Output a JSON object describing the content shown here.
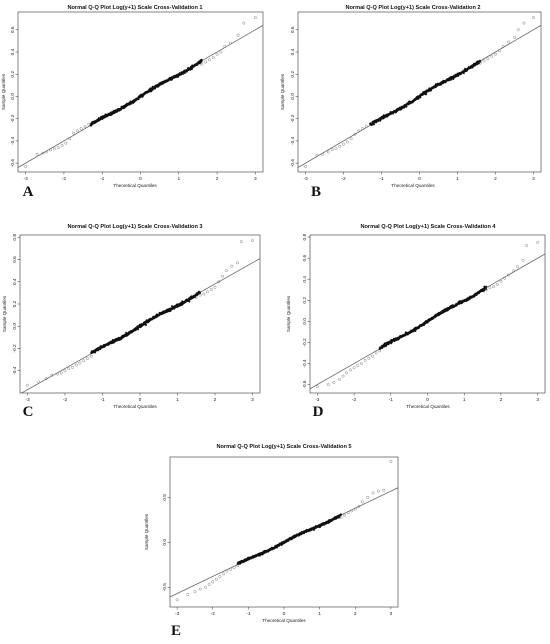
{
  "chart_data": [
    {
      "type": "scatter",
      "panel_label": "A",
      "title": "Normal Q-Q Plot Log(y+1) Scale Cross-Validation 1",
      "xlabel": "Theoretical Quantiles",
      "ylabel": "Sample Quantiles",
      "xlim": [
        -3.2,
        3.2
      ],
      "ylim": [
        -0.68,
        0.76
      ],
      "xticks": [
        -3,
        -2,
        -1,
        0,
        1,
        2,
        3
      ],
      "yticks": [
        -0.6,
        -0.4,
        -0.2,
        0.0,
        0.2,
        0.4,
        0.6
      ],
      "ytick_labels": [
        "-0.6",
        "-0.4",
        "-0.2",
        "0.0",
        "0.2",
        "0.4",
        "0.6"
      ],
      "reference_line": {
        "intercept": 0.0,
        "slope": 0.2
      },
      "series": [
        {
          "values": [
            [
              -3.0,
              -0.63
            ],
            [
              -2.7,
              -0.52
            ],
            [
              -2.55,
              -0.51
            ],
            [
              -2.45,
              -0.5
            ],
            [
              -2.35,
              -0.48
            ],
            [
              -2.25,
              -0.47
            ],
            [
              -2.15,
              -0.46
            ],
            [
              -2.05,
              -0.44
            ],
            [
              -1.95,
              -0.42
            ],
            [
              -1.85,
              -0.38
            ],
            [
              -1.75,
              -0.33
            ],
            [
              -1.65,
              -0.31
            ],
            [
              -1.55,
              -0.29
            ],
            [
              -1.45,
              -0.27
            ],
            [
              -1.35,
              -0.25
            ],
            [
              1.6,
              0.29
            ],
            [
              1.7,
              0.31
            ],
            [
              1.8,
              0.33
            ],
            [
              1.9,
              0.35
            ],
            [
              2.0,
              0.38
            ],
            [
              2.1,
              0.4
            ],
            [
              2.2,
              0.45
            ],
            [
              2.35,
              0.48
            ],
            [
              2.55,
              0.55
            ],
            [
              2.7,
              0.66
            ],
            [
              3.0,
              0.71
            ]
          ]
        }
      ]
    },
    {
      "type": "scatter",
      "panel_label": "B",
      "title": "Normal Q-Q Plot Log(y+1) Scale Cross-Validation 2",
      "xlabel": "Theoretical Quantiles",
      "ylabel": "Sample Quantiles",
      "xlim": [
        -3.2,
        3.2
      ],
      "ylim": [
        -0.68,
        0.76
      ],
      "xticks": [
        -3,
        -2,
        -1,
        0,
        1,
        2,
        3
      ],
      "yticks": [
        -0.6,
        -0.4,
        -0.2,
        0.0,
        0.2,
        0.4,
        0.6
      ],
      "ytick_labels": [
        "-0.6",
        "-0.4",
        "-0.2",
        "0.0",
        "0.2",
        "0.4",
        "0.6"
      ],
      "reference_line": {
        "intercept": 0.0,
        "slope": 0.2
      },
      "series": [
        {
          "values": [
            [
              -3.0,
              -0.63
            ],
            [
              -2.7,
              -0.53
            ],
            [
              -2.55,
              -0.52
            ],
            [
              -2.4,
              -0.5
            ],
            [
              -2.3,
              -0.48
            ],
            [
              -2.2,
              -0.47
            ],
            [
              -2.1,
              -0.45
            ],
            [
              -2.0,
              -0.43
            ],
            [
              -1.9,
              -0.41
            ],
            [
              -1.8,
              -0.38
            ],
            [
              -1.7,
              -0.34
            ],
            [
              -1.6,
              -0.31
            ],
            [
              -1.5,
              -0.29
            ],
            [
              -1.4,
              -0.27
            ],
            [
              1.6,
              0.3
            ],
            [
              1.7,
              0.32
            ],
            [
              1.8,
              0.34
            ],
            [
              1.9,
              0.36
            ],
            [
              2.0,
              0.38
            ],
            [
              2.1,
              0.41
            ],
            [
              2.2,
              0.45
            ],
            [
              2.35,
              0.49
            ],
            [
              2.5,
              0.53
            ],
            [
              2.6,
              0.6
            ],
            [
              2.75,
              0.66
            ],
            [
              3.0,
              0.71
            ]
          ]
        }
      ]
    },
    {
      "type": "scatter",
      "panel_label": "C",
      "title": "Normal Q-Q Plot Log(y+1) Scale Cross-Validation 3",
      "xlabel": "Theoretical Quantiles",
      "ylabel": "Sample Quantiles",
      "xlim": [
        -3.2,
        3.2
      ],
      "ylim": [
        -0.6,
        0.82
      ],
      "xticks": [
        -3,
        -2,
        -1,
        0,
        1,
        2,
        3
      ],
      "yticks": [
        -0.4,
        -0.2,
        0.0,
        0.2,
        0.4,
        0.6,
        0.8
      ],
      "ytick_labels": [
        "-0.4",
        "-0.2",
        "0.0",
        "0.2",
        "0.4",
        "0.6",
        "0.8"
      ],
      "reference_line": {
        "intercept": 0.0,
        "slope": 0.19
      },
      "series": [
        {
          "values": [
            [
              -3.0,
              -0.53
            ],
            [
              -2.7,
              -0.5
            ],
            [
              -2.5,
              -0.47
            ],
            [
              -2.35,
              -0.44
            ],
            [
              -2.2,
              -0.43
            ],
            [
              -2.1,
              -0.42
            ],
            [
              -2.0,
              -0.4
            ],
            [
              -1.9,
              -0.38
            ],
            [
              -1.8,
              -0.37
            ],
            [
              -1.7,
              -0.35
            ],
            [
              -1.6,
              -0.33
            ],
            [
              -1.5,
              -0.31
            ],
            [
              -1.4,
              -0.29
            ],
            [
              -1.3,
              -0.27
            ],
            [
              1.5,
              0.26
            ],
            [
              1.6,
              0.28
            ],
            [
              1.7,
              0.29
            ],
            [
              1.8,
              0.31
            ],
            [
              1.9,
              0.33
            ],
            [
              2.0,
              0.35
            ],
            [
              2.1,
              0.4
            ],
            [
              2.2,
              0.45
            ],
            [
              2.3,
              0.5
            ],
            [
              2.45,
              0.54
            ],
            [
              2.6,
              0.57
            ],
            [
              2.7,
              0.76
            ],
            [
              3.0,
              0.77
            ]
          ]
        }
      ]
    },
    {
      "type": "scatter",
      "panel_label": "D",
      "title": "Normal Q-Q Plot Log(y+1) Scale Cross-Validation 4",
      "xlabel": "Theoretical Quantiles",
      "ylabel": "Sample Quantiles",
      "xlim": [
        -3.2,
        3.2
      ],
      "ylim": [
        -0.68,
        0.82
      ],
      "xticks": [
        -3,
        -2,
        -1,
        0,
        1,
        2,
        3
      ],
      "yticks": [
        -0.6,
        -0.4,
        -0.2,
        0.0,
        0.2,
        0.4,
        0.6,
        0.8
      ],
      "ytick_labels": [
        "-0.6",
        "-0.4",
        "-0.2",
        "0.0",
        "0.2",
        "0.4",
        "0.6",
        "0.8"
      ],
      "reference_line": {
        "intercept": 0.0,
        "slope": 0.2
      },
      "series": [
        {
          "values": [
            [
              -3.0,
              -0.62
            ],
            [
              -2.7,
              -0.6
            ],
            [
              -2.55,
              -0.58
            ],
            [
              -2.4,
              -0.55
            ],
            [
              -2.3,
              -0.52
            ],
            [
              -2.2,
              -0.49
            ],
            [
              -2.1,
              -0.46
            ],
            [
              -2.0,
              -0.44
            ],
            [
              -1.9,
              -0.42
            ],
            [
              -1.8,
              -0.4
            ],
            [
              -1.7,
              -0.37
            ],
            [
              -1.6,
              -0.35
            ],
            [
              -1.5,
              -0.33
            ],
            [
              -1.4,
              -0.3
            ],
            [
              -1.3,
              -0.28
            ],
            [
              1.6,
              0.3
            ],
            [
              1.7,
              0.32
            ],
            [
              1.8,
              0.33
            ],
            [
              1.9,
              0.35
            ],
            [
              2.0,
              0.38
            ],
            [
              2.1,
              0.41
            ],
            [
              2.2,
              0.44
            ],
            [
              2.35,
              0.48
            ],
            [
              2.45,
              0.52
            ],
            [
              2.6,
              0.58
            ],
            [
              2.7,
              0.72
            ],
            [
              3.0,
              0.75
            ]
          ]
        }
      ]
    },
    {
      "type": "scatter",
      "panel_label": "E",
      "title": "Normal Q-Q Plot Log(y+1) Scale Cross-Validation 5",
      "xlabel": "Theoretical Quantiles",
      "ylabel": "Sample Quantiles",
      "xlim": [
        -3.2,
        3.2
      ],
      "ylim": [
        -0.72,
        0.95
      ],
      "xticks": [
        -3,
        -2,
        -1,
        0,
        1,
        2,
        3
      ],
      "yticks": [
        -0.5,
        0.0,
        0.5
      ],
      "ytick_labels": [
        "-0.5",
        "0.0",
        "0.5"
      ],
      "reference_line": {
        "intercept": 0.0,
        "slope": 0.19
      },
      "series": [
        {
          "values": [
            [
              -3.0,
              -0.64
            ],
            [
              -2.7,
              -0.58
            ],
            [
              -2.5,
              -0.55
            ],
            [
              -2.35,
              -0.52
            ],
            [
              -2.2,
              -0.5
            ],
            [
              -2.1,
              -0.47
            ],
            [
              -2.0,
              -0.44
            ],
            [
              -1.9,
              -0.41
            ],
            [
              -1.8,
              -0.38
            ],
            [
              -1.7,
              -0.35
            ],
            [
              -1.6,
              -0.32
            ],
            [
              -1.5,
              -0.3
            ],
            [
              -1.4,
              -0.28
            ],
            [
              -1.3,
              -0.26
            ],
            [
              1.6,
              0.28
            ],
            [
              1.7,
              0.3
            ],
            [
              1.8,
              0.33
            ],
            [
              1.9,
              0.35
            ],
            [
              2.0,
              0.37
            ],
            [
              2.1,
              0.4
            ],
            [
              2.2,
              0.45
            ],
            [
              2.35,
              0.5
            ],
            [
              2.5,
              0.55
            ],
            [
              2.65,
              0.57
            ],
            [
              2.8,
              0.58
            ],
            [
              3.0,
              0.9
            ]
          ]
        }
      ]
    }
  ]
}
